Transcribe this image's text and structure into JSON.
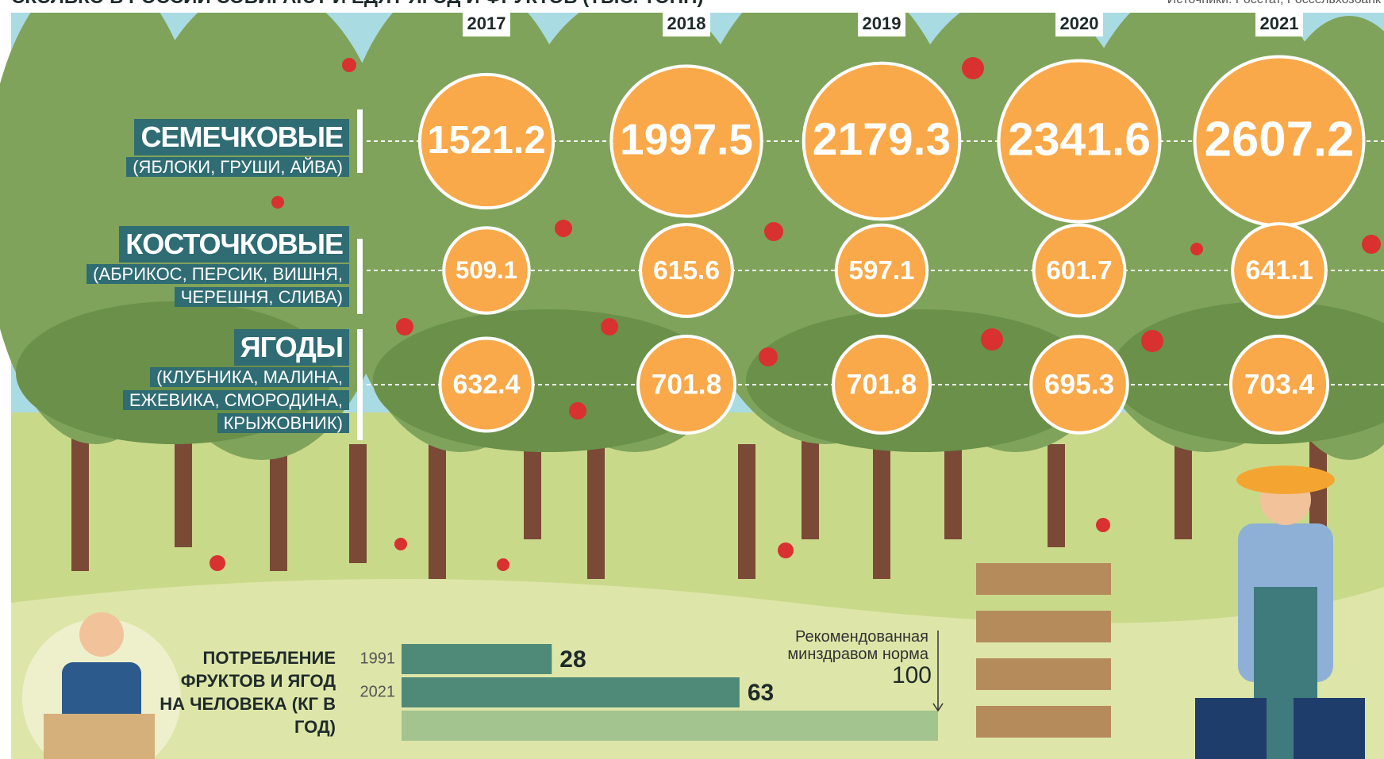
{
  "chart_data": [
    {
      "type": "bubble",
      "title": "СКОЛЬКО В РОССИИ СОБИРАЮТ И ЕДЯТ ЯГОД И ФРУКТОВ (ТЫС. ТОНН)",
      "source": "Источники: Росстат, Россельхозбанк",
      "categories": [
        "2017",
        "2018",
        "2019",
        "2020",
        "2021"
      ],
      "color": "#f9a94a",
      "series": [
        {
          "name": "СЕМЕЧКОВЫЕ",
          "description": "(ЯБЛОКИ, ГРУШИ, АЙВА)",
          "values": [
            1521.2,
            1997.5,
            2179.3,
            2341.6,
            2607.2
          ]
        },
        {
          "name": "КОСТОЧКОВЫЕ",
          "description": "(АБРИКОС, ПЕРСИК, ВИШНЯ, ЧЕРЕШНЯ, СЛИВА)",
          "values": [
            509.1,
            615.6,
            597.1,
            601.7,
            641.1
          ]
        },
        {
          "name": "ЯГОДЫ",
          "description": "(КЛУБНИКА, МАЛИНА, ЕЖЕВИКА, СМОРОДИНА, КРЫЖОВНИК)",
          "values": [
            632.4,
            701.8,
            701.8,
            695.3,
            703.4
          ]
        }
      ]
    },
    {
      "type": "bar",
      "title": "ПОТРЕБЛЕНИЕ ФРУКТОВ И ЯГОД НА ЧЕЛОВЕКА (КГ В ГОД)",
      "categories": [
        "1991",
        "2021"
      ],
      "values": [
        28,
        63
      ],
      "color": "#4f8a78",
      "xlim": [
        0,
        100
      ],
      "reference": {
        "label": "Рекомендованная минздравом норма",
        "value": 100,
        "color": "#a3c48e"
      }
    }
  ]
}
